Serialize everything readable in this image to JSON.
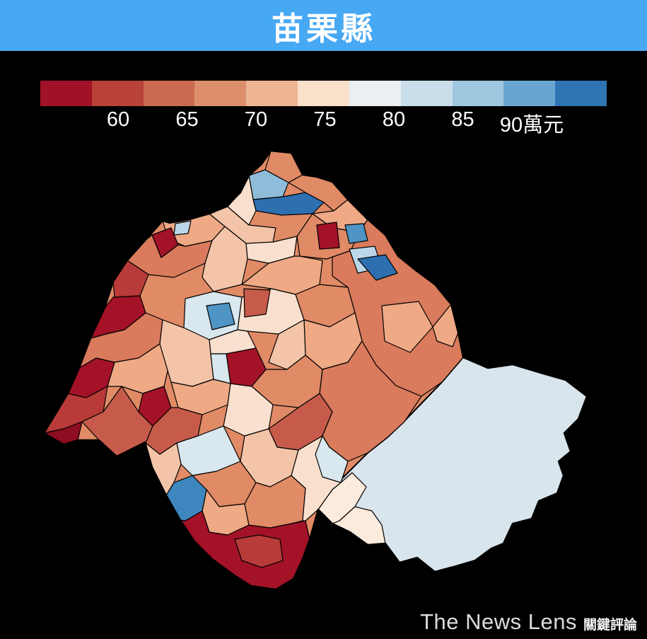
{
  "title": "苗栗縣",
  "colors": {
    "banner": "#47A8F3",
    "background": "#000000"
  },
  "legend": {
    "ticks": [
      "60",
      "65",
      "70",
      "75",
      "80",
      "85",
      "90萬元"
    ],
    "gradient": [
      "#A11228",
      "#B84138",
      "#CA6A50",
      "#DD8F6B",
      "#EDB592",
      "#F9E0CA",
      "#E9EFF2",
      "#C9DEEA",
      "#9FC7DF",
      "#6AA5D1",
      "#2F74B3"
    ]
  },
  "map_data": {
    "type": "choropleth",
    "region": "苗栗縣",
    "unit": "萬元",
    "scale_min": 60,
    "scale_max": 90,
    "scale_ticks": [
      60,
      65,
      70,
      75,
      80,
      85,
      90
    ],
    "legend_note": "red = low values, blue = high values"
  },
  "footer": {
    "logo_text": "The News Lens",
    "logo_suffix": "關鍵評論"
  },
  "map": {
    "base_fill": "#E08A66",
    "outline": "383,213 412,216 428,247 448,250 470,257 492,282 520,310 545,332 563,362 588,382 615,402 638,430 648,470 655,505 690,520 725,515 765,527 800,537 830,560 818,592 798,612 807,638 790,652 797,672 788,697 762,708 752,733 725,740 712,768 695,775 672,792 645,800 615,808 590,788 565,795 545,768 520,770 495,752 470,740 450,720 438,762 428,790 415,818 390,833 355,828 330,812 300,790 275,765 255,735 235,700 215,660 205,625 165,645 140,622 110,622 90,628 62,612 78,586 96,556 112,520 128,478 148,435 160,398 180,368 205,340 230,312 240,315 268,310 296,302 320,292 340,272 352,248 370,232",
    "regions": [
      {
        "p": "655,505 690,520 725,515 765,527 800,537 830,560 818,592 798,612 807,638 790,652 797,672 788,697 762,708 752,733 725,740 712,768 695,775 672,792 645,800 615,808 590,788 565,795 545,768 520,770 495,752 470,740 450,720 470,690 495,665 520,640 548,618 572,595 598,568 625,540",
        "c": "#D9E5EC",
        "w": 2
      },
      {
        "p": "508,328 520,310 545,332 563,362 588,382 615,402 638,430 648,470 655,505 625,540 596,560 560,545 532,516 512,482 502,442 492,406 470,390 470,322",
        "c": "#D97B5C"
      },
      {
        "p": "205,340 215,332 228,364 252,346 262,348 300,340 290,372 246,392 210,388 180,368",
        "c": "#D97B5C"
      },
      {
        "p": "230,312 240,315 268,310 296,302 318,320 300,340 262,348 238,338",
        "c": "#EFA985"
      },
      {
        "p": "322,292 352,318 390,322 386,342 348,344 318,320 296,302",
        "c": "#F3C4A8"
      },
      {
        "p": "348,344 386,342 420,334 416,362 380,372 350,366",
        "c": "#F9E0CE"
      },
      {
        "p": "420,334 442,302 470,322 508,328 496,354 462,366 424,362",
        "c": "#E08A66"
      },
      {
        "p": "290,372 300,340 318,320 348,344 350,366 342,402 302,412 286,392",
        "c": "#F3C4A8"
      },
      {
        "p": "342,402 380,372 416,362 424,362 456,368 452,402 418,416 384,408",
        "c": "#EFA985"
      },
      {
        "p": "342,420 384,408 418,416 430,452 394,472 350,468 336,466",
        "c": "#F9E0CE"
      },
      {
        "p": "262,422 302,412 342,420 336,466 296,480 260,464",
        "c": "#D9E7EF"
      },
      {
        "p": "418,416 452,402 492,406 502,442 466,462 430,452",
        "c": "#E08A66"
      },
      {
        "p": "430,452 466,462 502,442 512,482 492,512 456,522 432,502",
        "c": "#EFA985"
      },
      {
        "p": "394,472 430,452 432,502 406,522 380,512",
        "c": "#F3C4A8"
      },
      {
        "p": "296,480 336,466 350,468 362,492 320,500 298,500",
        "c": "#F9E0CE"
      },
      {
        "p": "128,478 150,472 176,466 206,442 230,452 226,486 196,506 162,512 136,506 112,520",
        "c": "#D97B5C"
      },
      {
        "p": "162,512 196,506 226,486 240,512 232,546 202,556 172,546 152,546",
        "c": "#EFA985"
      },
      {
        "p": "230,452 262,464 296,480 298,500 302,536 272,546 242,540 226,486",
        "c": "#F3C4A8"
      },
      {
        "p": "242,540 272,546 302,536 326,542 322,572 286,586 252,576",
        "c": "#EFA985"
      },
      {
        "p": "356,546 376,522 406,522 432,502 456,522 452,556 422,576 386,572",
        "c": "#E08A66"
      },
      {
        "p": "322,572 326,542 356,546 386,572 380,606 346,616 316,602",
        "c": "#F9E0CE"
      },
      {
        "p": "78,586 96,556 122,562 152,546 146,582 116,596 90,606 62,612",
        "c": "#B93B39"
      },
      {
        "p": "146,582 172,546 196,582 216,602 206,626 166,645 140,622 116,596",
        "c": "#C75B4B"
      },
      {
        "p": "216,602 242,576 252,576 286,586 280,616 250,626 226,642 206,626",
        "c": "#C75B4B"
      },
      {
        "p": "380,606 422,576 452,556 470,582 456,616 422,636 392,632",
        "c": "#C75B4B"
      },
      {
        "p": "456,522 492,512 512,482 532,516 560,545 596,560 572,596 548,618 520,640 492,652 466,632 456,616 470,582 452,556",
        "c": "#D97B5C"
      },
      {
        "p": "250,626 280,616 316,602 340,652 306,666 272,672 256,656",
        "c": "#D9E7EF"
      },
      {
        "p": "206,626 226,642 250,626 256,656 246,682 235,700 215,660",
        "c": "#F3C4A8"
      },
      {
        "p": "272,672 306,666 340,652 362,682 346,712 310,716 292,692",
        "c": "#E08A66"
      },
      {
        "p": "292,692 310,716 346,712 352,742 322,756 296,752 286,722",
        "c": "#EFA985"
      },
      {
        "p": "346,616 380,606 392,632 422,636 412,672 382,688 362,682 340,652",
        "c": "#F3C4A8"
      },
      {
        "p": "362,682 382,688 412,672 432,690 428,736 412,740 382,746 352,742 346,712",
        "c": "#E08A66"
      },
      {
        "p": "422,636 456,616 466,632 492,652 482,682 470,692 450,720 432,736 428,736 432,690 412,672",
        "c": "#F9E0CE"
      },
      {
        "p": "255,735 262,736 286,722 296,752 322,756 352,742 382,746 412,740 432,736 438,762 428,790 415,818 390,833 355,828 330,812 300,790 275,765",
        "c": "#A31227"
      },
      {
        "p": "332,762 366,756 396,762 400,792 370,802 342,792",
        "c": "#B93B39"
      },
      {
        "p": "450,720 470,692 482,682 498,668 518,688 502,716 480,736 470,740",
        "c": "#FBEBDD"
      },
      {
        "p": "470,740 480,736 502,716 526,722 540,742 545,768 520,770 495,752",
        "c": "#FBEBDD"
      },
      {
        "p": "540,432 592,426 612,462 580,498 544,482",
        "c": "#EFA985"
      },
      {
        "p": "612,462 638,430 648,470 640,490 618,482",
        "c": "#EFA985"
      },
      {
        "p": "383,213 412,216 428,247 408,258 375,240",
        "c": "#E08A66"
      },
      {
        "p": "375,240 408,258 400,278 358,282 352,248",
        "c": "#8FBDD9"
      },
      {
        "p": "358,282 400,278 432,272 458,286 442,302 398,304 362,298",
        "c": "#2E6FB0"
      },
      {
        "p": "428,247 448,250 470,257 492,282 472,298 458,286 432,272 408,258",
        "c": "#E08A66"
      },
      {
        "p": "340,272 352,248 358,282 362,298 352,318 322,292",
        "c": "#F9E0CE"
      },
      {
        "p": "442,302 472,298 492,282 520,310 508,328 470,322",
        "c": "#EFA985"
      },
      {
        "p": "448,318 476,314 480,350 452,352",
        "c": "#A31227"
      },
      {
        "p": "488,318 514,316 520,340 494,344",
        "c": "#4E94C4"
      },
      {
        "p": "494,352 530,348 540,378 506,386",
        "c": "#BCD8E8"
      },
      {
        "p": "506,366 545,360 562,386 532,396",
        "c": "#2E6FB0"
      },
      {
        "p": "215,332 242,322 252,346 228,364",
        "c": "#A31227"
      },
      {
        "p": "180,368 210,388 198,418 162,420 160,398",
        "c": "#B93B39"
      },
      {
        "p": "148,435 160,420 198,418 206,442 176,466 150,472 128,478",
        "c": "#A31227"
      },
      {
        "p": "345,408 382,410 376,444 346,448",
        "c": "#C75B4B"
      },
      {
        "p": "292,432 324,428 332,458 300,466",
        "c": "#4E94C4"
      },
      {
        "p": "320,500 362,492 376,522 356,546 326,542",
        "c": "#A31227"
      },
      {
        "p": "298,500 320,500 326,542 302,536",
        "c": "#D9E7EF"
      },
      {
        "p": "96,556 112,520 136,506 162,512 152,546 122,562",
        "c": "#A31227"
      },
      {
        "p": "62,612 90,606 116,596 110,622 90,628",
        "c": "#8E0D20"
      },
      {
        "p": "202,556 232,546 242,576 216,602 196,582",
        "c": "#A31227"
      },
      {
        "p": "456,616 466,632 492,652 482,682 456,674 446,642",
        "c": "#D9E7EF"
      },
      {
        "p": "235,700 246,682 272,672 292,692 286,722 262,736 255,735",
        "c": "#3E86BE"
      },
      {
        "p": "248,316 270,312 266,330 246,332",
        "c": "#BCD8E8"
      }
    ]
  }
}
